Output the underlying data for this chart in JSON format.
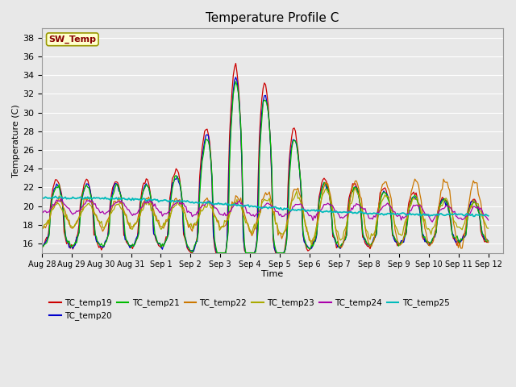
{
  "title": "Temperature Profile C",
  "xlabel": "Time",
  "ylabel": "Temperature (C)",
  "ylim": [
    15,
    39
  ],
  "yticks": [
    16,
    18,
    20,
    22,
    24,
    26,
    28,
    30,
    32,
    34,
    36,
    38
  ],
  "series_colors": {
    "TC_temp19": "#cc0000",
    "TC_temp20": "#0000cc",
    "TC_temp21": "#00bb00",
    "TC_temp22": "#cc7700",
    "TC_temp23": "#aaaa00",
    "TC_temp24": "#aa00aa",
    "TC_temp25": "#00bbbb"
  },
  "sw_temp_label": "SW_Temp",
  "sw_temp_bg": "#ffffcc",
  "sw_temp_color": "#880000",
  "plot_bg": "#e8e8e8",
  "fig_bg": "#e8e8e8",
  "grid_color": "#ffffff"
}
